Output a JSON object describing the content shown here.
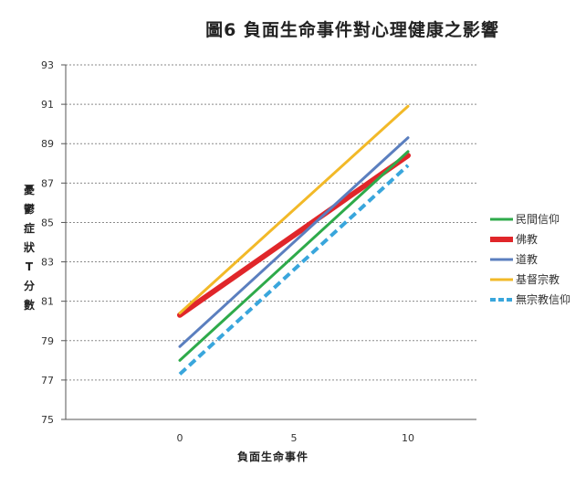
{
  "chart_data": {
    "type": "line",
    "title": "圖6 負面生命事件對心理健康之影響",
    "xlabel": "負面生命事件",
    "ylabel": "憂鬱症狀T分數",
    "x": [
      0,
      10
    ],
    "xticks": [
      0,
      5,
      10
    ],
    "xlim": [
      -5,
      13
    ],
    "yticks": [
      75,
      77,
      79,
      81,
      83,
      85,
      87,
      89,
      91,
      93
    ],
    "ylim": [
      75,
      93
    ],
    "grid": "horizontal dashed",
    "legend": "right",
    "series": [
      {
        "name": "民間信仰",
        "values": [
          78.0,
          88.6
        ],
        "color": "#2eaa4a",
        "dash": "solid",
        "weight": 3
      },
      {
        "name": "佛教",
        "values": [
          80.3,
          88.4
        ],
        "color": "#e0262a",
        "dash": "solid",
        "weight": 6
      },
      {
        "name": "道教",
        "values": [
          78.7,
          89.3
        ],
        "color": "#5b7fbf",
        "dash": "solid",
        "weight": 3
      },
      {
        "name": "基督宗教",
        "values": [
          80.4,
          90.9
        ],
        "color": "#f2b928",
        "dash": "solid",
        "weight": 3
      },
      {
        "name": "無宗教信仰",
        "values": [
          77.3,
          87.9
        ],
        "color": "#39a6dc",
        "dash": "dashed",
        "weight": 4
      }
    ]
  }
}
